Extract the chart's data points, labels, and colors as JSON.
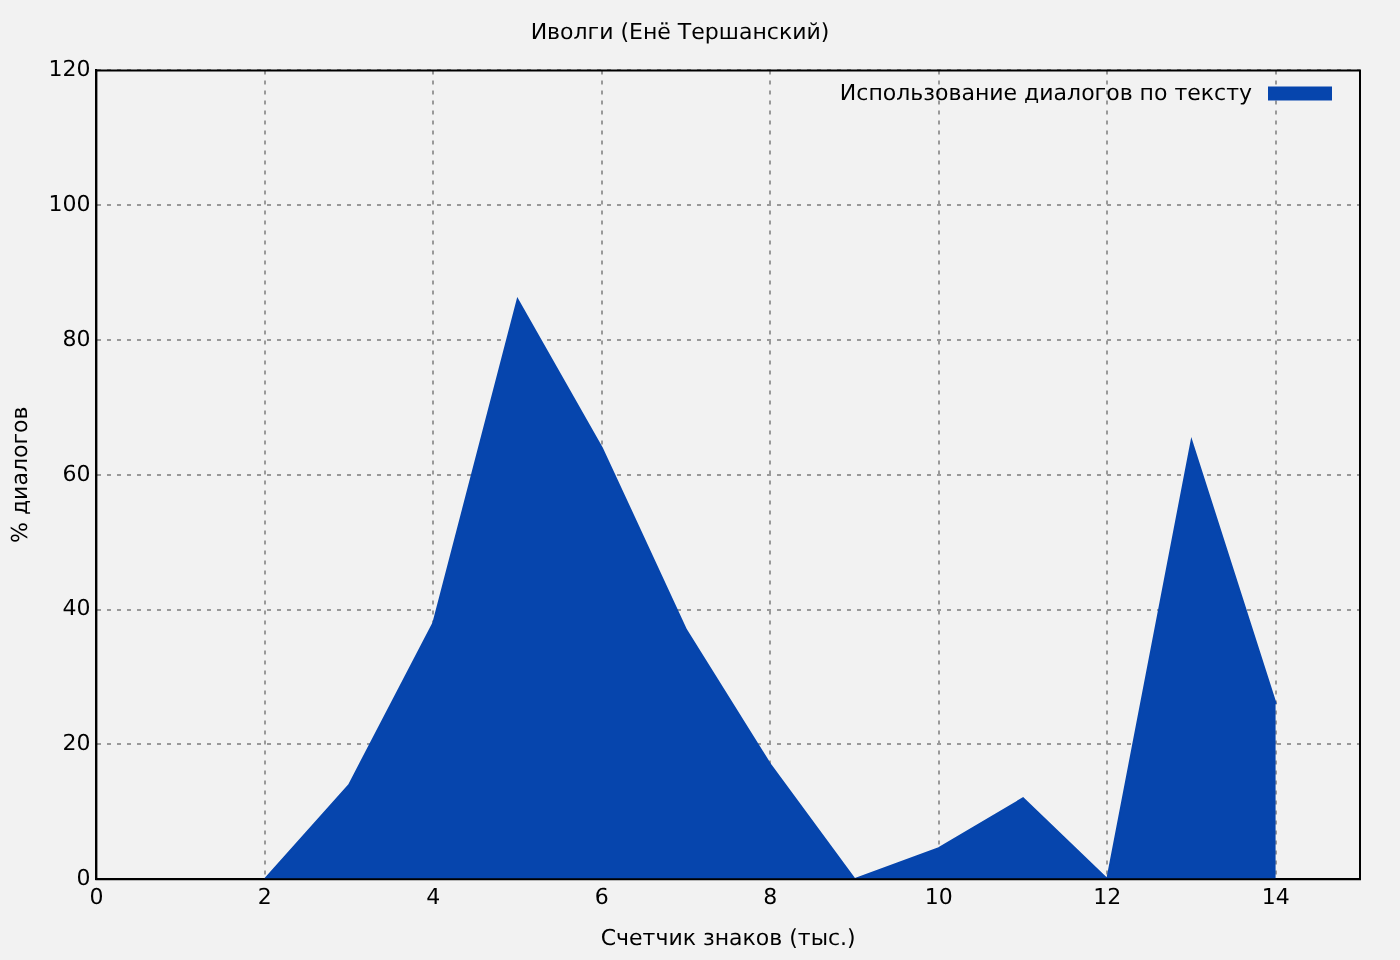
{
  "chart_data": {
    "type": "area",
    "title": "Иволги (Енё Тершанский)",
    "xlabel": "Счетчик знаков (тыс.)",
    "ylabel": "% диалогов",
    "x": [
      2,
      3,
      4,
      5,
      6,
      7,
      8,
      9,
      10,
      11,
      12,
      13,
      14
    ],
    "series": [
      {
        "name": "Использование диалогов по тексту",
        "color": "#0645ad",
        "values": [
          0,
          14,
          38,
          86,
          64,
          37,
          17,
          0,
          4.6,
          12,
          0,
          65,
          26
        ]
      }
    ],
    "xlim": [
      0,
      15
    ],
    "xticks": [
      0,
      2,
      4,
      6,
      8,
      10,
      12,
      14
    ],
    "ylim": [
      0,
      120
    ],
    "yticks": [
      0,
      20,
      40,
      60,
      80,
      100,
      120
    ],
    "grid": true,
    "legend": "top right"
  }
}
